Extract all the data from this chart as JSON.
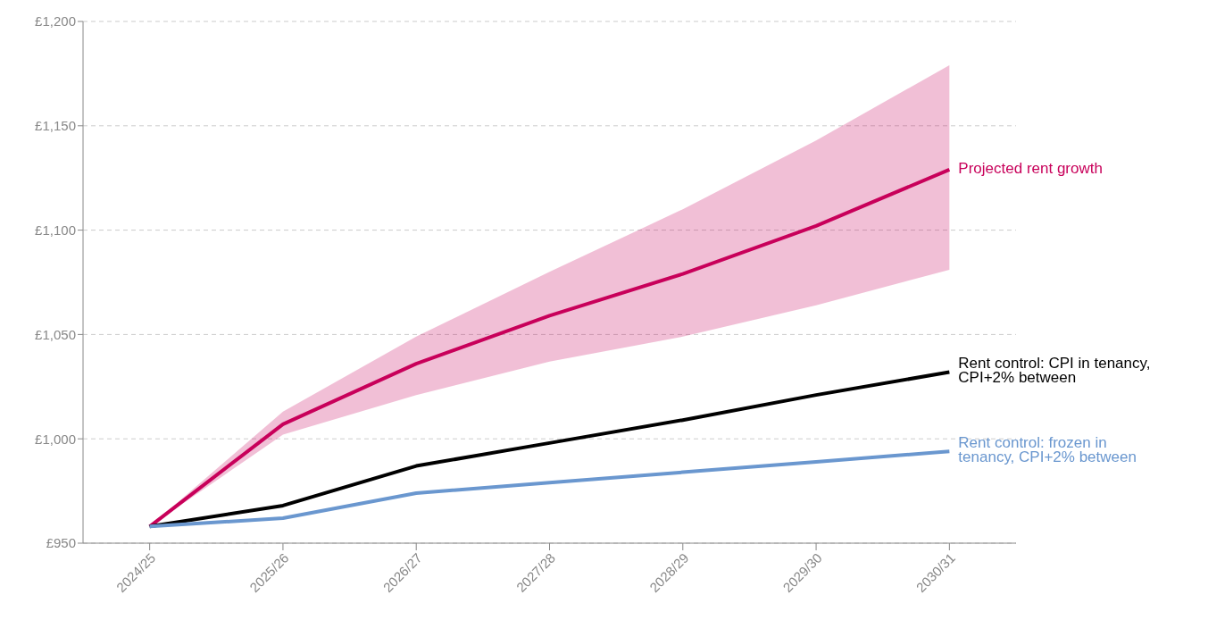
{
  "chart_data": {
    "type": "line",
    "categories": [
      "2024/25",
      "2025/26",
      "2026/27",
      "2027/28",
      "2028/29",
      "2029/30",
      "2030/31"
    ],
    "series": [
      {
        "name": "Projected rent growth",
        "color": "#c8005a",
        "values": [
          958,
          1007,
          1036,
          1059,
          1079,
          1102,
          1129
        ],
        "lower": [
          958,
          1002,
          1021,
          1037,
          1049,
          1064,
          1081
        ],
        "upper": [
          958,
          1013,
          1049,
          1080,
          1110,
          1143,
          1179
        ]
      },
      {
        "name": "Rent control: CPI in tenancy, CPI+2% between",
        "color": "#000000",
        "values": [
          958,
          968,
          987,
          998,
          1009,
          1021,
          1032
        ]
      },
      {
        "name": "Rent control: frozen in tenancy, CPI+2% between",
        "color": "#6a97cf",
        "values": [
          958,
          962,
          974,
          979,
          984,
          989,
          994
        ]
      }
    ],
    "ylim": [
      950,
      1200
    ],
    "yticks": [
      {
        "value": 950,
        "label": "£950"
      },
      {
        "value": 1000,
        "label": "£1,000"
      },
      {
        "value": 1050,
        "label": "£1,050"
      },
      {
        "value": 1100,
        "label": "£1,100"
      },
      {
        "value": 1150,
        "label": "£1,150"
      },
      {
        "value": 1200,
        "label": "£1,200"
      }
    ],
    "grid": "y",
    "legend": false,
    "marker": "none",
    "line_style": "solid"
  }
}
